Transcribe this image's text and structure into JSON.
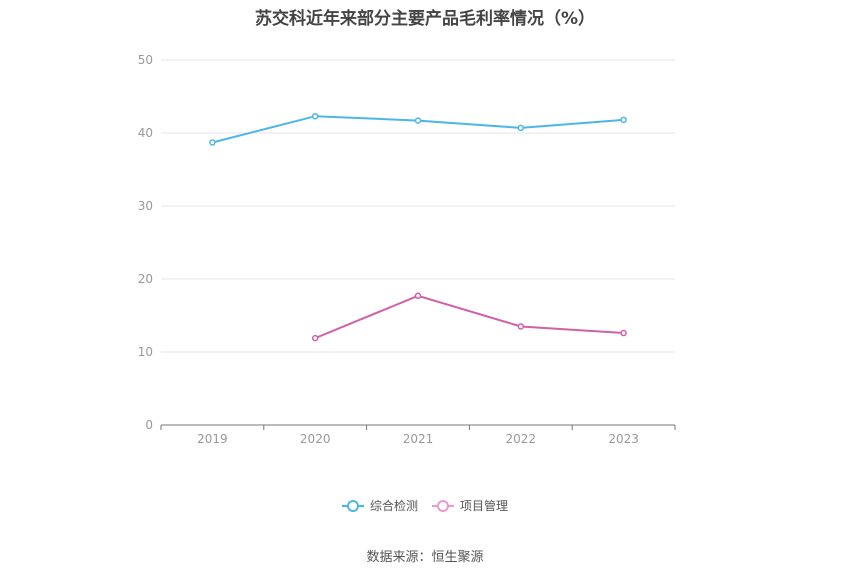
{
  "chart_data": {
    "type": "line",
    "title": "苏交科近年来部分主要产品毛利率情况（%）",
    "categories": [
      "2019",
      "2020",
      "2021",
      "2022",
      "2023"
    ],
    "ylim": [
      0,
      50
    ],
    "yticks": [
      0,
      10,
      20,
      30,
      40,
      50
    ],
    "grid": true,
    "legend_position": "bottom",
    "series": [
      {
        "name": "综合检测",
        "color": "#4db6e8",
        "values": [
          38.7,
          42.3,
          41.7,
          40.7,
          41.8
        ]
      },
      {
        "name": "项目管理",
        "color": "#d060a8",
        "values": [
          null,
          11.9,
          17.7,
          13.5,
          12.6
        ]
      }
    ]
  },
  "source": "数据来源：恒生聚源"
}
